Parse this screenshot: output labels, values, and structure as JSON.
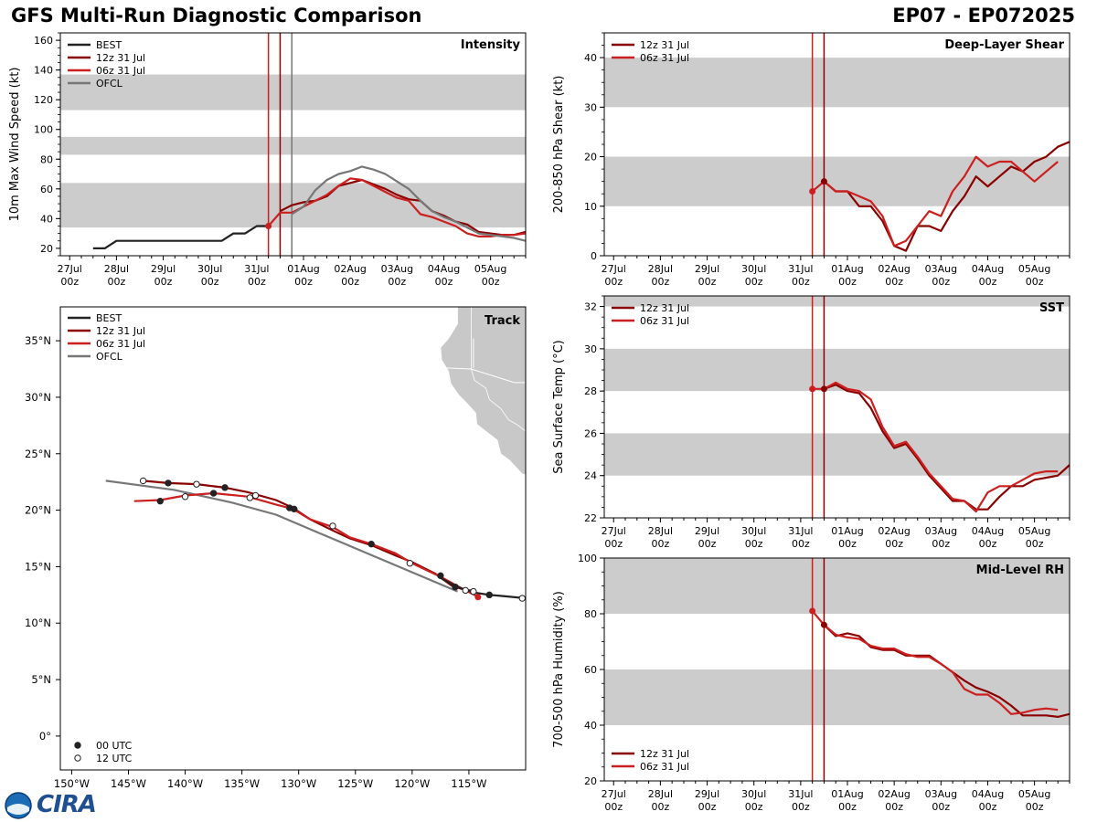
{
  "header": {
    "title_left": "GFS Multi-Run Diagnostic Comparison",
    "title_right": "EP07 - EP072025"
  },
  "logo": {
    "text": "CIRA"
  },
  "time_ticks": [
    "27Jul\n00z",
    "28Jul\n00z",
    "29Jul\n00z",
    "30Jul\n00z",
    "31Jul\n00z",
    "01Aug\n00z",
    "02Aug\n00z",
    "03Aug\n00z",
    "04Aug\n00z",
    "05Aug\n00z"
  ],
  "series_colors": {
    "BEST": "#222222",
    "12z 31 Jul": "#8b0000",
    "06z 31 Jul": "#cc1f1f",
    "OFCL": "#777777"
  },
  "chart_data": [
    {
      "id": "intensity",
      "type": "line",
      "title": "Intensity",
      "ylabel": "10m Max Wind Speed (kt)",
      "xlabel": "",
      "xlim": [
        -0.2,
        9.75
      ],
      "ylim": [
        15,
        165
      ],
      "yticks": [
        20,
        40,
        60,
        80,
        100,
        120,
        140,
        160
      ],
      "bands": [
        [
          34,
          64
        ],
        [
          83,
          95
        ],
        [
          113,
          137
        ]
      ],
      "vlines": [
        {
          "x": 4.25,
          "series": "06z 31 Jul"
        },
        {
          "x": 4.5,
          "series": "12z 31 Jul"
        },
        {
          "x": 4.75,
          "series": "OFCL"
        }
      ],
      "legend": [
        "BEST",
        "12z 31 Jul",
        "06z 31 Jul",
        "OFCL"
      ],
      "series": [
        {
          "name": "BEST",
          "x": [
            0.5,
            0.75,
            1,
            1.25,
            1.5,
            1.75,
            2,
            2.25,
            2.5,
            2.75,
            3,
            3.25,
            3.5,
            3.75,
            4,
            4.25
          ],
          "y": [
            20,
            20,
            25,
            25,
            25,
            25,
            25,
            25,
            25,
            25,
            25,
            25,
            30,
            30,
            35,
            35
          ]
        },
        {
          "name": "12z 31 Jul",
          "x": [
            4.5,
            4.75,
            5,
            5.25,
            5.5,
            5.75,
            6,
            6.25,
            6.5,
            6.75,
            7,
            7.25,
            7.5,
            7.75,
            8,
            8.25,
            8.5,
            8.75,
            9,
            9.25,
            9.5,
            9.75
          ],
          "y": [
            45,
            49,
            51,
            52,
            55,
            62,
            64,
            66,
            63,
            60,
            56,
            53,
            52,
            45,
            42,
            38,
            36,
            31,
            30,
            29,
            29,
            31
          ]
        },
        {
          "name": "06z 31 Jul",
          "x": [
            4.25,
            4.5,
            4.75,
            5,
            5.25,
            5.5,
            5.75,
            6,
            6.25,
            6.5,
            6.75,
            7,
            7.25,
            7.5,
            7.75,
            8,
            8.25,
            8.5,
            8.75,
            9,
            9.25,
            9.5,
            9.75
          ],
          "y": [
            35,
            44,
            44,
            48,
            52,
            56,
            62,
            67,
            66,
            62,
            58,
            54,
            52,
            43,
            41,
            38,
            35,
            30,
            28,
            28,
            29,
            29,
            30
          ]
        },
        {
          "name": "OFCL",
          "x": [
            4.75,
            5,
            5.25,
            5.5,
            5.75,
            6,
            6.25,
            6.5,
            6.75,
            7,
            7.25,
            7.5,
            7.75,
            8,
            8.25,
            8.5,
            8.75,
            9,
            9.5,
            9.75
          ],
          "y": [
            43,
            48,
            59,
            66,
            70,
            72,
            75,
            73,
            70,
            65,
            60,
            52,
            45,
            41,
            38,
            34,
            30,
            29,
            27,
            25
          ]
        }
      ],
      "points": [
        {
          "series": "06z 31 Jul",
          "x": 4.25,
          "y": 35
        }
      ]
    },
    {
      "id": "shear",
      "type": "line",
      "title": "Deep-Layer Shear",
      "ylabel": "200-850 hPa Shear (kt)",
      "xlabel": "",
      "xlim": [
        -0.2,
        9.75
      ],
      "ylim": [
        0,
        45
      ],
      "yticks": [
        0,
        10,
        20,
        30,
        40
      ],
      "bands": [
        [
          10,
          20
        ],
        [
          30,
          40
        ]
      ],
      "vlines": [
        {
          "x": 4.25,
          "series": "06z 31 Jul"
        },
        {
          "x": 4.5,
          "series": "12z 31 Jul"
        }
      ],
      "legend": [
        "12z 31 Jul",
        "06z 31 Jul"
      ],
      "series": [
        {
          "name": "12z 31 Jul",
          "x": [
            4.5,
            4.75,
            5,
            5.25,
            5.5,
            5.75,
            6,
            6.25,
            6.5,
            6.75,
            7,
            7.25,
            7.5,
            7.75,
            8,
            8.25,
            8.5,
            8.75,
            9,
            9.25,
            9.5,
            9.75
          ],
          "y": [
            15,
            13,
            13,
            10,
            10,
            7,
            2,
            1,
            6,
            6,
            5,
            9,
            12,
            16,
            14,
            16,
            18,
            17,
            19,
            20,
            22,
            23
          ]
        },
        {
          "name": "06z 31 Jul",
          "x": [
            4.25,
            4.5,
            4.75,
            5,
            5.25,
            5.5,
            5.75,
            6,
            6.25,
            6.5,
            6.75,
            7,
            7.25,
            7.5,
            7.75,
            8,
            8.25,
            8.5,
            8.75,
            9,
            9.25,
            9.5
          ],
          "y": [
            13,
            15,
            13,
            13,
            12,
            11,
            8,
            2,
            3,
            6,
            9,
            8,
            13,
            16,
            20,
            18,
            19,
            19,
            17,
            15,
            17,
            19
          ]
        }
      ],
      "points": [
        {
          "series": "06z 31 Jul",
          "x": 4.25,
          "y": 13
        },
        {
          "series": "12z 31 Jul",
          "x": 4.5,
          "y": 15
        }
      ]
    },
    {
      "id": "sst",
      "type": "line",
      "title": "SST",
      "ylabel": "Sea Surface Temp (°C)",
      "xlabel": "",
      "xlim": [
        -0.2,
        9.75
      ],
      "ylim": [
        22,
        32.5
      ],
      "yticks": [
        22,
        24,
        26,
        28,
        30,
        32
      ],
      "bands": [
        [
          24,
          26
        ],
        [
          28,
          30
        ],
        [
          32,
          34
        ]
      ],
      "vlines": [
        {
          "x": 4.25,
          "series": "06z 31 Jul"
        },
        {
          "x": 4.5,
          "series": "12z 31 Jul"
        }
      ],
      "legend": [
        "12z 31 Jul",
        "06z 31 Jul"
      ],
      "series": [
        {
          "name": "12z 31 Jul",
          "x": [
            4.5,
            4.75,
            5,
            5.25,
            5.5,
            5.75,
            6,
            6.25,
            6.5,
            6.75,
            7,
            7.25,
            7.5,
            7.75,
            8,
            8.25,
            8.5,
            8.75,
            9,
            9.25,
            9.5,
            9.75
          ],
          "y": [
            28.1,
            28.3,
            28.0,
            27.9,
            27.2,
            26.1,
            25.3,
            25.5,
            24.8,
            24.0,
            23.4,
            22.8,
            22.8,
            22.4,
            22.4,
            23.0,
            23.5,
            23.5,
            23.8,
            23.9,
            24.0,
            24.5
          ]
        },
        {
          "name": "06z 31 Jul",
          "x": [
            4.25,
            4.5,
            4.75,
            5,
            5.25,
            5.5,
            5.75,
            6,
            6.25,
            6.5,
            6.75,
            7,
            7.25,
            7.5,
            7.75,
            8,
            8.25,
            8.5,
            8.75,
            9,
            9.25,
            9.5
          ],
          "y": [
            28.1,
            28.1,
            28.4,
            28.1,
            28.0,
            27.6,
            26.3,
            25.4,
            25.6,
            24.9,
            24.1,
            23.5,
            22.9,
            22.8,
            22.3,
            23.2,
            23.5,
            23.5,
            23.8,
            24.1,
            24.2,
            24.2
          ]
        }
      ],
      "points": [
        {
          "series": "06z 31 Jul",
          "x": 4.25,
          "y": 28.1
        },
        {
          "series": "12z 31 Jul",
          "x": 4.5,
          "y": 28.1
        }
      ]
    },
    {
      "id": "rh",
      "type": "line",
      "title": "Mid-Level RH",
      "ylabel": "700-500 hPa Humidity (%)",
      "xlabel": "",
      "xlim": [
        -0.2,
        9.75
      ],
      "ylim": [
        20,
        100
      ],
      "yticks": [
        20,
        40,
        60,
        80,
        100
      ],
      "bands": [
        [
          40,
          60
        ],
        [
          80,
          100
        ]
      ],
      "vlines": [
        {
          "x": 4.25,
          "series": "06z 31 Jul"
        },
        {
          "x": 4.5,
          "series": "12z 31 Jul"
        }
      ],
      "legend": [
        "12z 31 Jul",
        "06z 31 Jul"
      ],
      "series": [
        {
          "name": "12z 31 Jul",
          "x": [
            4.5,
            4.75,
            5,
            5.25,
            5.5,
            5.75,
            6,
            6.25,
            6.5,
            6.75,
            7,
            7.25,
            7.5,
            7.75,
            8,
            8.25,
            8.5,
            8.75,
            9,
            9.25,
            9.5,
            9.75
          ],
          "y": [
            76,
            72,
            73,
            72,
            68,
            67,
            67,
            65,
            65,
            65,
            62,
            59,
            56,
            53.5,
            52,
            50,
            47,
            43.5,
            43.5,
            43.5,
            43,
            44
          ]
        },
        {
          "name": "06z 31 Jul",
          "x": [
            4.25,
            4.5,
            4.75,
            5,
            5.25,
            5.5,
            5.75,
            6,
            6.25,
            6.5,
            6.75,
            7,
            7.25,
            7.5,
            7.75,
            8,
            8.25,
            8.5,
            8.75,
            9,
            9.25,
            9.5
          ],
          "y": [
            81,
            76,
            72.5,
            71.5,
            71,
            68.5,
            67.5,
            67.5,
            65.5,
            64.5,
            64.5,
            62,
            59,
            53,
            51,
            51,
            48,
            44,
            44.5,
            45.5,
            46,
            45.5
          ]
        }
      ],
      "points": [
        {
          "series": "06z 31 Jul",
          "x": 4.25,
          "y": 81
        },
        {
          "series": "12z 31 Jul",
          "x": 4.5,
          "y": 76
        }
      ]
    },
    {
      "id": "track",
      "type": "map-track",
      "title": "Track",
      "xlim": [
        -151,
        -110
      ],
      "ylim": [
        -3,
        38
      ],
      "xticks": [
        -150,
        -145,
        -140,
        -135,
        -130,
        -125,
        -120,
        -115
      ],
      "xticklabels": [
        "150°W",
        "145°W",
        "140°W",
        "135°W",
        "130°W",
        "125°W",
        "120°W",
        "115°W"
      ],
      "yticks": [
        0,
        5,
        10,
        15,
        20,
        25,
        30,
        35
      ],
      "yticklabels": [
        "0°",
        "5°N",
        "10°N",
        "15°N",
        "20°N",
        "25°N",
        "30°N",
        "35°N"
      ],
      "legend": [
        "BEST",
        "12z 31 Jul",
        "06z 31 Jul",
        "OFCL"
      ],
      "marker_legend": [
        "00 UTC",
        "12 UTC"
      ],
      "series": [
        {
          "name": "OFCL",
          "lon": [
            -147,
            -141,
            -136,
            -132,
            -128,
            -124,
            -120,
            -116
          ],
          "lat": [
            22.6,
            21.8,
            20.7,
            19.6,
            17.9,
            16.2,
            14.5,
            12.8
          ]
        },
        {
          "name": "12z 31 Jul",
          "lon": [
            -143.7,
            -141.5,
            -139,
            -136.5,
            -134.5,
            -132,
            -130.5,
            -129,
            -127,
            -125.5,
            -123.6,
            -121.5,
            -120,
            -118,
            -116.5,
            -115.2,
            -114.5
          ],
          "lat": [
            22.6,
            22.4,
            22.3,
            22.0,
            21.6,
            20.9,
            20.2,
            19.2,
            18.2,
            17.5,
            16.9,
            16.0,
            15.4,
            14.4,
            13.3,
            12.9,
            12.9
          ]
        },
        {
          "name": "06z 31 Jul",
          "lon": [
            -144.5,
            -142.2,
            -140,
            -137.5,
            -134.5,
            -132,
            -130.5,
            -129,
            -127,
            -125.5,
            -123.6,
            -121.5,
            -120,
            -117.5,
            -115.5,
            -114.3
          ],
          "lat": [
            20.8,
            20.9,
            21.3,
            21.5,
            21.2,
            20.5,
            20.1,
            19.2,
            18.5,
            17.6,
            17.0,
            16.2,
            15.3,
            14.1,
            13.0,
            12.4
          ]
        },
        {
          "name": "BEST",
          "lon": [
            -117.5,
            -116,
            -114.5,
            -113.2,
            -112,
            -110
          ],
          "lat": [
            14.0,
            13.2,
            12.7,
            12.5,
            12.4,
            12.2
          ]
        }
      ],
      "markers": [
        {
          "lon": -143.7,
          "lat": 22.6,
          "type": "12 UTC"
        },
        {
          "lon": -141.5,
          "lat": 22.4,
          "type": "00 UTC"
        },
        {
          "lon": -139,
          "lat": 22.3,
          "type": "12 UTC"
        },
        {
          "lon": -136.5,
          "lat": 22.0,
          "type": "00 UTC"
        },
        {
          "lon": -133.8,
          "lat": 21.3,
          "type": "12 UTC"
        },
        {
          "lon": -130.8,
          "lat": 20.2,
          "type": "00 UTC"
        },
        {
          "lon": -127,
          "lat": 18.6,
          "type": "12 UTC"
        },
        {
          "lon": -123.6,
          "lat": 17.0,
          "type": "00 UTC"
        },
        {
          "lon": -120.2,
          "lat": 15.3,
          "type": "12 UTC"
        },
        {
          "lon": -117.5,
          "lat": 14.2,
          "type": "00 UTC"
        },
        {
          "lon": -115.3,
          "lat": 12.9,
          "type": "12 UTC"
        },
        {
          "lon": -142.2,
          "lat": 20.8,
          "type": "00 UTC"
        },
        {
          "lon": -140,
          "lat": 21.2,
          "type": "12 UTC"
        },
        {
          "lon": -137.5,
          "lat": 21.5,
          "type": "00 UTC"
        },
        {
          "lon": -134.3,
          "lat": 21.1,
          "type": "12 UTC"
        },
        {
          "lon": -130.4,
          "lat": 20.1,
          "type": "00 UTC"
        },
        {
          "lon": -116.2,
          "lat": 13.2,
          "type": "00 UTC"
        },
        {
          "lon": -114.6,
          "lat": 12.8,
          "type": "12 UTC"
        },
        {
          "lon": -113.2,
          "lat": 12.5,
          "type": "00 UTC"
        },
        {
          "lon": -110.3,
          "lat": 12.2,
          "type": "12 UTC"
        }
      ],
      "endpoints": [
        {
          "series": "06z 31 Jul",
          "lon": -114.2,
          "lat": 12.3
        }
      ]
    }
  ]
}
